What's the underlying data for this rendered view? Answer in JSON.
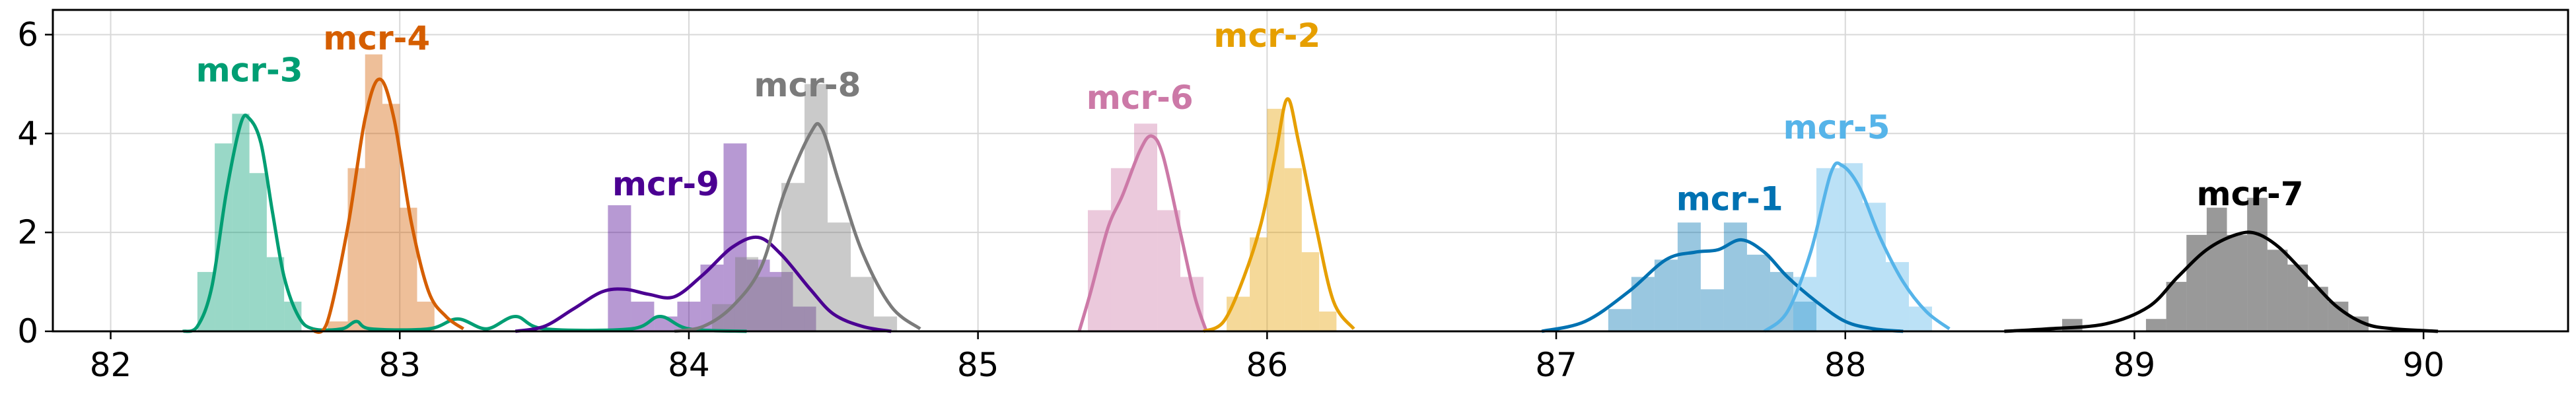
{
  "chart_data": {
    "type": "area",
    "title": "",
    "xlabel": "",
    "ylabel": "",
    "xlim": [
      81.8,
      90.5
    ],
    "ylim": [
      0,
      6.5
    ],
    "grid": true,
    "x_ticks": [
      82,
      83,
      84,
      85,
      86,
      87,
      88,
      89,
      90
    ],
    "y_ticks": [
      0,
      2,
      4,
      6
    ],
    "series": [
      {
        "name": "mcr-3",
        "color": "#009e73",
        "label_at": [
          82.48,
          5.05
        ],
        "hist": [
          [
            82.3,
            82.36,
            1.2
          ],
          [
            82.36,
            82.42,
            3.8
          ],
          [
            82.42,
            82.48,
            4.4
          ],
          [
            82.48,
            82.54,
            3.2
          ],
          [
            82.54,
            82.6,
            1.5
          ],
          [
            82.6,
            82.66,
            0.6
          ]
        ],
        "kde": [
          [
            82.25,
            0
          ],
          [
            82.3,
            0.1
          ],
          [
            82.35,
            0.9
          ],
          [
            82.4,
            2.8
          ],
          [
            82.45,
            4.2
          ],
          [
            82.48,
            4.3
          ],
          [
            82.52,
            3.8
          ],
          [
            82.56,
            2.4
          ],
          [
            82.6,
            1.1
          ],
          [
            82.65,
            0.3
          ],
          [
            82.7,
            0.05
          ],
          [
            82.8,
            0.05
          ],
          [
            82.85,
            0.2
          ],
          [
            82.9,
            0.05
          ],
          [
            83.1,
            0.05
          ],
          [
            83.2,
            0.25
          ],
          [
            83.3,
            0.05
          ],
          [
            83.4,
            0.3
          ],
          [
            83.5,
            0.05
          ],
          [
            83.8,
            0.05
          ],
          [
            83.9,
            0.3
          ],
          [
            84.0,
            0.05
          ],
          [
            84.2,
            0
          ]
        ]
      },
      {
        "name": "mcr-4",
        "color": "#d55e00",
        "label_at": [
          82.92,
          5.7
        ],
        "hist": [
          [
            82.75,
            82.82,
            0.2
          ],
          [
            82.82,
            82.88,
            3.3
          ],
          [
            82.88,
            82.94,
            5.6
          ],
          [
            82.94,
            83.0,
            4.6
          ],
          [
            83.0,
            83.06,
            2.5
          ],
          [
            83.06,
            83.12,
            0.6
          ]
        ],
        "kde": [
          [
            82.7,
            0
          ],
          [
            82.75,
            0.2
          ],
          [
            82.82,
            2.1
          ],
          [
            82.88,
            4.3
          ],
          [
            82.93,
            5.1
          ],
          [
            82.98,
            4.3
          ],
          [
            83.04,
            2.2
          ],
          [
            83.1,
            0.8
          ],
          [
            83.16,
            0.3
          ],
          [
            83.22,
            0.05
          ]
        ]
      },
      {
        "name": "mcr-9",
        "color": "#4b0092",
        "label_at": [
          83.92,
          2.75
        ],
        "hist": [
          [
            83.72,
            83.8,
            2.55
          ],
          [
            83.8,
            83.88,
            0.6
          ],
          [
            83.88,
            83.96,
            0.3
          ],
          [
            83.96,
            84.04,
            0.6
          ],
          [
            84.04,
            84.12,
            1.35
          ],
          [
            84.12,
            84.2,
            3.8
          ],
          [
            84.2,
            84.28,
            1.45
          ],
          [
            84.28,
            84.36,
            1.2
          ],
          [
            84.36,
            84.44,
            0.5
          ]
        ],
        "kde": [
          [
            83.4,
            0
          ],
          [
            83.5,
            0.1
          ],
          [
            83.6,
            0.45
          ],
          [
            83.7,
            0.8
          ],
          [
            83.78,
            0.85
          ],
          [
            83.86,
            0.75
          ],
          [
            83.95,
            0.7
          ],
          [
            84.05,
            1.15
          ],
          [
            84.15,
            1.7
          ],
          [
            84.24,
            1.9
          ],
          [
            84.32,
            1.55
          ],
          [
            84.42,
            0.85
          ],
          [
            84.5,
            0.35
          ],
          [
            84.6,
            0.1
          ],
          [
            84.7,
            0
          ]
        ]
      },
      {
        "name": "mcr-8",
        "color": "#7b7b7b",
        "label_at": [
          84.41,
          4.75
        ],
        "hist": [
          [
            84.08,
            84.16,
            0.55
          ],
          [
            84.16,
            84.24,
            1.5
          ],
          [
            84.24,
            84.32,
            1.1
          ],
          [
            84.32,
            84.4,
            3.0
          ],
          [
            84.4,
            84.48,
            5.0
          ],
          [
            84.48,
            84.56,
            2.2
          ],
          [
            84.56,
            84.64,
            1.1
          ],
          [
            84.64,
            84.72,
            0.3
          ]
        ],
        "kde": [
          [
            83.95,
            0
          ],
          [
            84.05,
            0.1
          ],
          [
            84.15,
            0.5
          ],
          [
            84.25,
            1.3
          ],
          [
            84.33,
            2.8
          ],
          [
            84.42,
            4.0
          ],
          [
            84.46,
            4.1
          ],
          [
            84.52,
            3.0
          ],
          [
            84.6,
            1.6
          ],
          [
            84.7,
            0.5
          ],
          [
            84.8,
            0.05
          ]
        ]
      },
      {
        "name": "mcr-6",
        "color": "#cc79a7",
        "label_at": [
          85.56,
          4.5
        ],
        "hist": [
          [
            85.38,
            85.46,
            2.45
          ],
          [
            85.46,
            85.54,
            3.3
          ],
          [
            85.54,
            85.62,
            4.2
          ],
          [
            85.62,
            85.7,
            2.45
          ],
          [
            85.7,
            85.78,
            1.1
          ]
        ],
        "kde": [
          [
            85.35,
            0
          ],
          [
            85.39,
            0.8
          ],
          [
            85.45,
            2.1
          ],
          [
            85.5,
            2.75
          ],
          [
            85.56,
            3.65
          ],
          [
            85.6,
            3.95
          ],
          [
            85.64,
            3.55
          ],
          [
            85.7,
            2.0
          ],
          [
            85.75,
            0.7
          ],
          [
            85.79,
            0
          ]
        ]
      },
      {
        "name": "mcr-2",
        "color": "#e69f00",
        "label_at": [
          86.0,
          5.75
        ],
        "hist": [
          [
            85.86,
            85.94,
            0.7
          ],
          [
            85.94,
            86.0,
            1.9
          ],
          [
            86.0,
            86.06,
            4.5
          ],
          [
            86.06,
            86.12,
            3.3
          ],
          [
            86.12,
            86.18,
            1.6
          ],
          [
            86.18,
            86.24,
            0.4
          ]
        ],
        "kde": [
          [
            85.78,
            0
          ],
          [
            85.85,
            0.2
          ],
          [
            85.92,
            1.1
          ],
          [
            85.98,
            2.2
          ],
          [
            86.03,
            3.6
          ],
          [
            86.07,
            4.7
          ],
          [
            86.11,
            3.8
          ],
          [
            86.17,
            2.1
          ],
          [
            86.23,
            0.6
          ],
          [
            86.3,
            0.05
          ]
        ]
      },
      {
        "name": "mcr-1",
        "color": "#0072b2",
        "label_at": [
          87.6,
          2.45
        ],
        "hist": [
          [
            87.18,
            87.26,
            0.45
          ],
          [
            87.26,
            87.34,
            1.1
          ],
          [
            87.34,
            87.42,
            1.45
          ],
          [
            87.42,
            87.5,
            2.2
          ],
          [
            87.5,
            87.58,
            0.85
          ],
          [
            87.58,
            87.66,
            2.2
          ],
          [
            87.66,
            87.74,
            1.55
          ],
          [
            87.74,
            87.82,
            1.2
          ],
          [
            87.82,
            87.9,
            0.6
          ]
        ],
        "kde": [
          [
            86.95,
            0
          ],
          [
            87.1,
            0.2
          ],
          [
            87.25,
            0.8
          ],
          [
            87.38,
            1.45
          ],
          [
            87.48,
            1.6
          ],
          [
            87.56,
            1.65
          ],
          [
            87.64,
            1.85
          ],
          [
            87.72,
            1.6
          ],
          [
            87.8,
            1.1
          ],
          [
            87.9,
            0.6
          ],
          [
            88.0,
            0.2
          ],
          [
            88.1,
            0.05
          ],
          [
            88.2,
            0
          ]
        ]
      },
      {
        "name": "mcr-5",
        "color": "#56b4e9",
        "label_at": [
          87.97,
          3.9
        ],
        "hist": [
          [
            87.82,
            87.9,
            1.1
          ],
          [
            87.9,
            87.98,
            3.3
          ],
          [
            87.98,
            88.06,
            3.4
          ],
          [
            88.06,
            88.14,
            2.6
          ],
          [
            88.14,
            88.22,
            1.4
          ],
          [
            88.22,
            88.3,
            0.5
          ]
        ],
        "kde": [
          [
            87.72,
            0
          ],
          [
            87.8,
            0.4
          ],
          [
            87.88,
            1.6
          ],
          [
            87.95,
            3.2
          ],
          [
            87.99,
            3.35
          ],
          [
            88.05,
            2.9
          ],
          [
            88.12,
            1.9
          ],
          [
            88.2,
            1.0
          ],
          [
            88.28,
            0.4
          ],
          [
            88.36,
            0.05
          ]
        ]
      },
      {
        "name": "mcr-7",
        "color": "#000000",
        "label_at": [
          89.4,
          2.55
        ],
        "hist": [
          [
            88.75,
            88.82,
            0.25
          ],
          [
            89.04,
            89.11,
            0.25
          ],
          [
            89.11,
            89.18,
            1.0
          ],
          [
            89.18,
            89.25,
            1.95
          ],
          [
            89.25,
            89.32,
            2.5
          ],
          [
            89.32,
            89.39,
            1.95
          ],
          [
            89.39,
            89.46,
            2.7
          ],
          [
            89.46,
            89.53,
            1.65
          ],
          [
            89.53,
            89.6,
            1.35
          ],
          [
            89.6,
            89.67,
            0.9
          ],
          [
            89.67,
            89.74,
            0.6
          ],
          [
            89.74,
            89.81,
            0.3
          ]
        ],
        "kde": [
          [
            88.55,
            0
          ],
          [
            88.7,
            0.05
          ],
          [
            88.9,
            0.15
          ],
          [
            89.05,
            0.5
          ],
          [
            89.15,
            1.1
          ],
          [
            89.25,
            1.65
          ],
          [
            89.35,
            1.95
          ],
          [
            89.42,
            1.98
          ],
          [
            89.5,
            1.7
          ],
          [
            89.6,
            1.1
          ],
          [
            89.7,
            0.5
          ],
          [
            89.8,
            0.15
          ],
          [
            89.9,
            0.05
          ],
          [
            90.05,
            0
          ]
        ]
      }
    ]
  }
}
